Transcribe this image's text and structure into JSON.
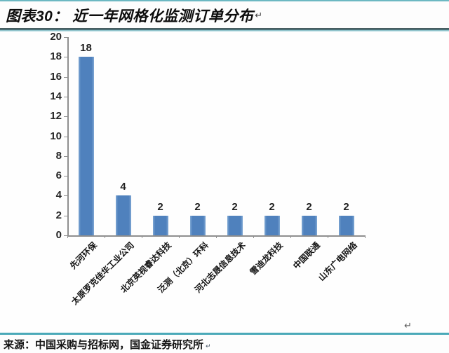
{
  "header": {
    "title": "图表30： 近一年网格化监测订单分布",
    "paragraph_mark": "↵"
  },
  "chart_data": {
    "type": "bar",
    "title": "近一年网格化监测订单分布",
    "categories": [
      "先河环保",
      "太原罗克佳华工业公司",
      "北京英视睿达科技",
      "泛测（北京）环科",
      "河北志晟信息技术",
      "雪迪龙科技",
      "中国联通",
      "山东广电网络"
    ],
    "values": [
      18,
      4,
      2,
      2,
      2,
      2,
      2,
      2
    ],
    "xlabel": "",
    "ylabel": "",
    "ylim": [
      0,
      20
    ],
    "ytick_step": 2,
    "grid": false,
    "legend": false,
    "bar_color": "#4f81bd",
    "bar_edge_color": "#7fa8d4",
    "axis_color": "#8f8f8f"
  },
  "chart_end_mark": "↵",
  "footer": {
    "source": "来源：中国采购与招标网，国金证券研究所",
    "mark": "↵"
  },
  "colors": {
    "divider_teal": "#4aa9b8",
    "top_rule_teal": "#6cb8c2"
  }
}
